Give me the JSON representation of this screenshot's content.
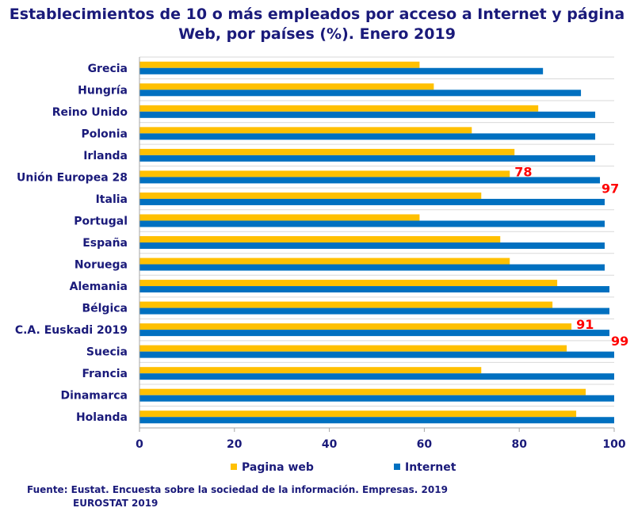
{
  "chart_data": {
    "type": "bar",
    "orientation": "horizontal",
    "title_line1": "Establecimientos de 10 o más empleados por acceso a Internet y página",
    "title_line2": "Web, por países (%). Enero 2019",
    "categories": [
      "Grecia",
      "Hungría",
      "Reino Unido",
      "Polonia",
      "Irlanda",
      "Unión Europea 28",
      "Italia",
      "Portugal",
      "España",
      "Noruega",
      "Alemania",
      "Bélgica",
      "C.A. Euskadi 2019",
      "Suecia",
      "Francia",
      "Dinamarca",
      "Holanda"
    ],
    "series": [
      {
        "name": "Pagina web",
        "color": "#ffc000",
        "values": [
          59,
          62,
          84,
          70,
          79,
          78,
          72,
          59,
          76,
          78,
          88,
          87,
          91,
          90,
          72,
          94,
          92
        ]
      },
      {
        "name": "Internet",
        "color": "#0070c0",
        "values": [
          85,
          93,
          96,
          96,
          96,
          97,
          98,
          98,
          98,
          98,
          99,
          99,
          99,
          100,
          100,
          100,
          100
        ]
      }
    ],
    "xlim": [
      0,
      100
    ],
    "xticks": [
      "0",
      "20",
      "40",
      "60",
      "80",
      "100"
    ],
    "annotations": [
      {
        "category": "Unión Europea 28",
        "series": "Pagina web",
        "text": "78"
      },
      {
        "category": "Unión Europea 28",
        "series": "Internet",
        "text": "97"
      },
      {
        "category": "C.A. Euskadi 2019",
        "series": "Pagina web",
        "text": "91"
      },
      {
        "category": "C.A. Euskadi 2019",
        "series": "Internet",
        "text": "99"
      }
    ],
    "legend": [
      "Pagina web",
      "Internet"
    ],
    "gridlines": true
  },
  "source": {
    "line1": "Fuente: Eustat. Encuesta sobre la sociedad de la información. Empresas. 2019",
    "line2": "EUROSTAT 2019"
  }
}
